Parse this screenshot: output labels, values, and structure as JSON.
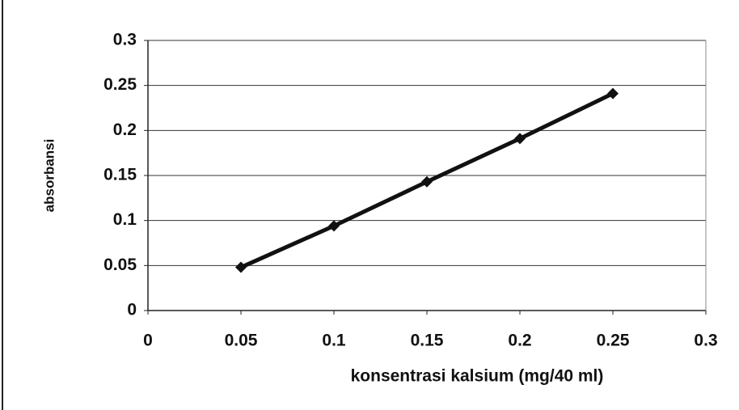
{
  "chart_data": {
    "type": "line",
    "xlabel": "konsentrasi kalsium (mg/40 ml)",
    "ylabel": "absorbansi",
    "x": [
      0.05,
      0.1,
      0.15,
      0.2,
      0.25
    ],
    "values": [
      0.048,
      0.094,
      0.143,
      0.191,
      0.241
    ],
    "color": "#111111",
    "xlim": [
      0,
      0.3
    ],
    "xticks": [
      0,
      0.05,
      0.1,
      0.15,
      0.2,
      0.25,
      0.3
    ],
    "ylim": [
      0,
      0.3
    ],
    "yticks": [
      0,
      0.05,
      0.1,
      0.15,
      0.2,
      0.25,
      0.3
    ],
    "grid": true
  }
}
